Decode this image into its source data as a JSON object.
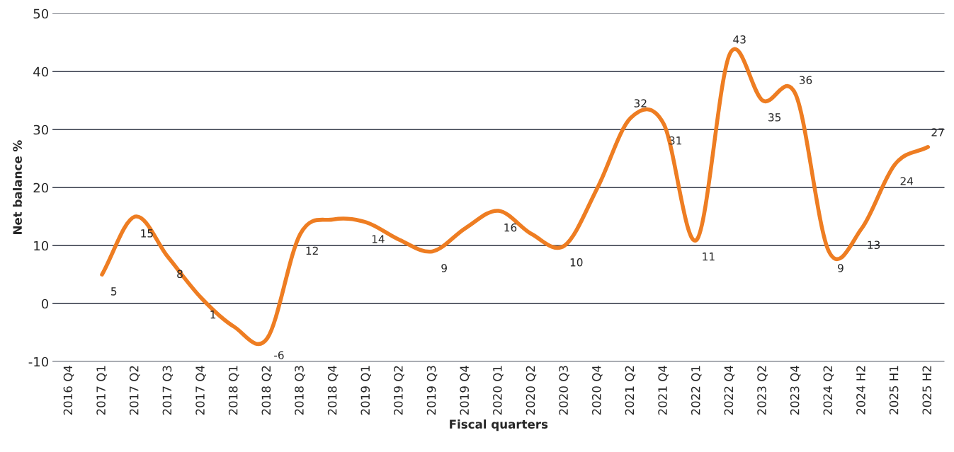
{
  "chart_data": {
    "type": "line",
    "xlabel": "Fiscal quarters",
    "ylabel": "Net balance %",
    "categories": [
      "2016 Q4",
      "2017 Q1",
      "2017 Q2",
      "2017 Q3",
      "2017 Q4",
      "2018 Q1",
      "2018 Q2",
      "2018 Q3",
      "2018 Q4",
      "2019 Q1",
      "2019 Q2",
      "2019 Q3",
      "2019 Q4",
      "2020 Q1",
      "2020 Q2",
      "2020 Q3",
      "2020 Q4",
      "2021 Q2",
      "2021 Q4",
      "2022 Q1",
      "2022 Q4",
      "2023 Q2",
      "2023 Q4",
      "2024 Q2",
      "2024 H2",
      "2025 H1",
      "2025 H2"
    ],
    "series": [
      {
        "color": "#ee7d22",
        "values": [
          null,
          5,
          15,
          8,
          1,
          -4,
          -6,
          12,
          14.5,
          14,
          11,
          9,
          13,
          16,
          12,
          10,
          20,
          32,
          31,
          11,
          43,
          35,
          36,
          9,
          13,
          24,
          27
        ],
        "value_labels": [
          null,
          "5",
          "15",
          "8",
          "1",
          null,
          "-6",
          "12",
          null,
          "14",
          null,
          "9",
          null,
          "16",
          null,
          "10",
          null,
          "32",
          "31",
          "11",
          "43",
          "35",
          "36",
          "9",
          "13",
          "24",
          "27"
        ]
      }
    ],
    "ylim": [
      -10,
      50
    ],
    "yticks": [
      -10,
      0,
      10,
      20,
      30,
      40,
      50
    ],
    "grid": "y",
    "legend": false,
    "marker": "none",
    "line_style": "solid"
  }
}
